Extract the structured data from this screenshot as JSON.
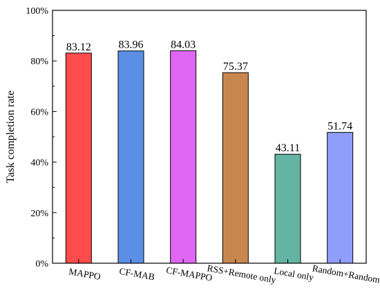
{
  "chart_data": {
    "type": "bar",
    "title": "",
    "xlabel": "",
    "ylabel": "Task completion rate",
    "ylim": [
      0,
      100
    ],
    "yticks": [
      "0%",
      "20%",
      "40%",
      "60%",
      "80%",
      "100%"
    ],
    "grid": false,
    "legend": "none",
    "categories": [
      "MAPPO",
      "CF-MAB",
      "CF-MAPPO",
      "RSS+Remote only",
      "Local only",
      "Random+Random"
    ],
    "values": [
      83.12,
      83.96,
      84.03,
      75.37,
      43.11,
      51.74
    ],
    "data_labels": [
      "83.12",
      "83.96",
      "84.03",
      "75.37",
      "43.11",
      "51.74"
    ],
    "colors": [
      "#ff4b4b",
      "#5b8fe6",
      "#e066f5",
      "#c8874f",
      "#63b4a2",
      "#8f9dfb"
    ]
  }
}
